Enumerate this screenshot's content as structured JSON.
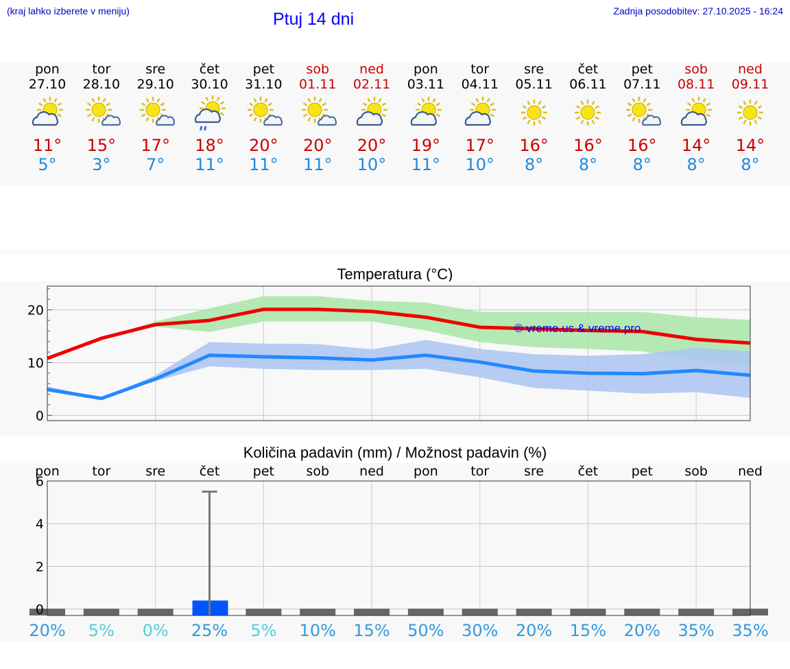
{
  "header": {
    "note": "(kraj lahko izberete v meniju)",
    "title": "Ptuj 14 dni",
    "updated": "Zadnja posodobitev: 27.10.2025 - 16:24"
  },
  "days": [
    {
      "name": "pon",
      "date": "27.10",
      "weekend": false,
      "icon": "cloud-sun-icon",
      "tmax": "11°",
      "tmin": "5°"
    },
    {
      "name": "tor",
      "date": "28.10",
      "weekend": false,
      "icon": "sun-cloud-icon",
      "tmax": "15°",
      "tmin": "3°"
    },
    {
      "name": "sre",
      "date": "29.10",
      "weekend": false,
      "icon": "sun-cloud-icon",
      "tmax": "17°",
      "tmin": "7°"
    },
    {
      "name": "čet",
      "date": "30.10",
      "weekend": false,
      "icon": "cloud-sun-rain-icon",
      "tmax": "18°",
      "tmin": "11°"
    },
    {
      "name": "pet",
      "date": "31.10",
      "weekend": false,
      "icon": "sun-cloud-icon",
      "tmax": "20°",
      "tmin": "11°"
    },
    {
      "name": "sob",
      "date": "01.11",
      "weekend": true,
      "icon": "sun-cloud-icon",
      "tmax": "20°",
      "tmin": "11°"
    },
    {
      "name": "ned",
      "date": "02.11",
      "weekend": true,
      "icon": "cloud-sun-icon",
      "tmax": "20°",
      "tmin": "10°"
    },
    {
      "name": "pon",
      "date": "03.11",
      "weekend": false,
      "icon": "cloud-sun-icon",
      "tmax": "19°",
      "tmin": "11°"
    },
    {
      "name": "tor",
      "date": "04.11",
      "weekend": false,
      "icon": "cloud-sun-icon",
      "tmax": "17°",
      "tmin": "10°"
    },
    {
      "name": "sre",
      "date": "05.11",
      "weekend": false,
      "icon": "sun-icon",
      "tmax": "16°",
      "tmin": "8°"
    },
    {
      "name": "čet",
      "date": "06.11",
      "weekend": false,
      "icon": "sun-icon",
      "tmax": "16°",
      "tmin": "8°"
    },
    {
      "name": "pet",
      "date": "07.11",
      "weekend": false,
      "icon": "sun-cloud-icon",
      "tmax": "16°",
      "tmin": "8°"
    },
    {
      "name": "sob",
      "date": "08.11",
      "weekend": true,
      "icon": "cloud-sun-icon",
      "tmax": "14°",
      "tmin": "8°"
    },
    {
      "name": "ned",
      "date": "09.11",
      "weekend": true,
      "icon": "sun-icon",
      "tmax": "14°",
      "tmin": "8°"
    }
  ],
  "colors": {
    "max": "#ee0000",
    "min": "#2288ff",
    "max_band": "#a8e6a8",
    "min_band": "#aac4f2",
    "precip_bar": "#0055ff",
    "weekend": "#cc0000",
    "chance_high": "#3399dd",
    "chance_low": "#55ccdd"
  },
  "chart_data": [
    {
      "type": "line",
      "title": "Temperatura (°C)",
      "watermark": "© vreme.us & vreme.pro",
      "x": [
        "27.10",
        "28.10",
        "29.10",
        "30.10",
        "31.10",
        "01.11",
        "02.11",
        "03.11",
        "04.11",
        "05.11",
        "06.11",
        "07.11",
        "08.11",
        "09.11"
      ],
      "ylim": [
        -1,
        24.5
      ],
      "yticks": [
        0,
        10,
        20
      ],
      "grid": true,
      "series": [
        {
          "key": "max",
          "values": [
            10.8,
            14.6,
            17.2,
            18.0,
            20.1,
            20.1,
            19.7,
            18.6,
            16.7,
            16.4,
            16.1,
            15.9,
            14.4,
            13.7
          ],
          "band_low": [
            10.6,
            14.6,
            16.8,
            15.8,
            17.8,
            17.8,
            17.8,
            16.1,
            13.9,
            12.9,
            12.6,
            12.1,
            10.6,
            9.6
          ],
          "band_high": [
            11.0,
            14.6,
            17.8,
            20.3,
            22.6,
            22.6,
            21.7,
            21.4,
            19.6,
            19.6,
            19.6,
            19.6,
            18.6,
            18.1
          ]
        },
        {
          "key": "min",
          "values": [
            4.9,
            3.2,
            6.9,
            11.4,
            11.1,
            10.9,
            10.5,
            11.4,
            10.1,
            8.4,
            8.0,
            7.9,
            8.5,
            7.6
          ],
          "band_low": [
            4.6,
            3.2,
            6.5,
            9.3,
            8.8,
            8.6,
            8.6,
            8.8,
            7.2,
            5.2,
            4.7,
            4.1,
            4.4,
            3.3
          ],
          "band_high": [
            5.5,
            3.2,
            7.6,
            13.9,
            13.6,
            13.5,
            12.5,
            14.3,
            12.6,
            11.6,
            11.3,
            11.6,
            12.8,
            12.1
          ]
        }
      ]
    },
    {
      "type": "bar",
      "title": "Količina padavin (mm) / Možnost padavin (%)",
      "categories": [
        "pon",
        "tor",
        "sre",
        "čet",
        "pet",
        "sob",
        "ned",
        "pon",
        "tor",
        "sre",
        "čet",
        "pet",
        "sob",
        "ned"
      ],
      "values": [
        0,
        0,
        0,
        0.4,
        0,
        0,
        0,
        0,
        0,
        0,
        0,
        0,
        0,
        0
      ],
      "error_high": [
        0,
        0,
        0,
        5.5,
        0,
        0,
        0,
        0,
        0,
        0,
        0,
        0,
        0,
        0
      ],
      "chance": [
        "20%",
        "5%",
        "0%",
        "25%",
        "5%",
        "10%",
        "15%",
        "50%",
        "30%",
        "20%",
        "15%",
        "20%",
        "35%",
        "35%"
      ],
      "chance_values": [
        20,
        5,
        0,
        25,
        5,
        10,
        15,
        50,
        30,
        20,
        15,
        20,
        35,
        35
      ],
      "ylim": [
        -0.3,
        6
      ],
      "yticks": [
        0,
        2,
        4,
        6
      ],
      "grid": true
    }
  ]
}
